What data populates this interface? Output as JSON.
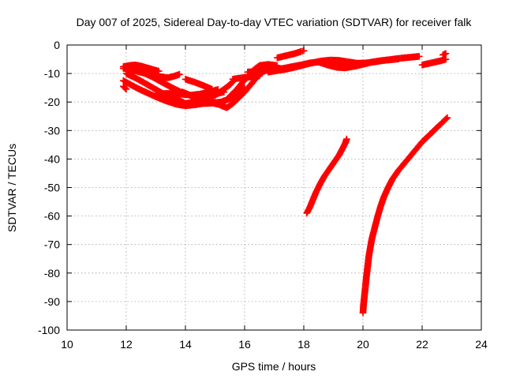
{
  "chart_data": {
    "type": "scatter",
    "title": "Day 007 of 2025, Sidereal Day-to-day VTEC variation (SDTVAR) for receiver falk",
    "xlabel": "GPS time / hours",
    "ylabel": "SDTVAR / TECUs",
    "xlim": [
      10,
      24
    ],
    "ylim": [
      -100,
      0
    ],
    "xticks": [
      10,
      12,
      14,
      16,
      18,
      20,
      22,
      24
    ],
    "yticks": [
      0,
      -10,
      -20,
      -30,
      -40,
      -50,
      -60,
      -70,
      -80,
      -90,
      -100
    ],
    "grid": true,
    "marker": "+",
    "color": "#ff0000",
    "series": [
      {
        "values": [
          [
            11.9,
            -7.6
          ],
          [
            12.1,
            -7.2
          ],
          [
            12.3,
            -7.0
          ],
          [
            12.5,
            -7.4
          ],
          [
            12.7,
            -8.0
          ],
          [
            12.9,
            -8.6
          ],
          [
            13.1,
            -9.2
          ]
        ]
      },
      {
        "values": [
          [
            11.9,
            -8.2
          ],
          [
            12.2,
            -8.8
          ],
          [
            12.5,
            -9.6
          ],
          [
            12.8,
            -10.4
          ],
          [
            13.1,
            -11.0
          ],
          [
            13.4,
            -11.5
          ],
          [
            13.6,
            -11.0
          ],
          [
            13.8,
            -10.3
          ]
        ]
      },
      {
        "values": [
          [
            12.0,
            -10.0
          ],
          [
            12.3,
            -11.5
          ],
          [
            12.6,
            -13.2
          ],
          [
            12.9,
            -15.0
          ],
          [
            13.2,
            -16.8
          ],
          [
            13.5,
            -18.5
          ],
          [
            13.8,
            -19.5
          ],
          [
            14.0,
            -20.5
          ],
          [
            14.3,
            -20.0
          ],
          [
            14.6,
            -19.2
          ],
          [
            14.9,
            -18.2
          ],
          [
            15.1,
            -17.0
          ],
          [
            15.3,
            -15.5
          ],
          [
            15.5,
            -14.0
          ],
          [
            15.6,
            -12.8
          ]
        ]
      },
      {
        "values": [
          [
            11.9,
            -12.5
          ],
          [
            12.2,
            -14.2
          ],
          [
            12.5,
            -15.8
          ],
          [
            12.8,
            -17.2
          ],
          [
            13.1,
            -18.6
          ],
          [
            13.4,
            -19.8
          ],
          [
            13.7,
            -20.8
          ],
          [
            14.0,
            -21.3
          ],
          [
            14.3,
            -21.0
          ],
          [
            14.6,
            -20.5
          ],
          [
            14.9,
            -20.4
          ],
          [
            15.2,
            -20.0
          ],
          [
            15.5,
            -18.8
          ],
          [
            15.8,
            -17.0
          ],
          [
            16.0,
            -15.0
          ]
        ]
      },
      {
        "values": [
          [
            12.3,
            -8.5
          ],
          [
            12.6,
            -9.8
          ],
          [
            12.9,
            -11.3
          ],
          [
            13.2,
            -13.0
          ],
          [
            13.5,
            -14.7
          ],
          [
            13.8,
            -16.3
          ],
          [
            14.1,
            -17.5
          ],
          [
            14.4,
            -18.5
          ],
          [
            14.7,
            -18.0
          ],
          [
            15.0,
            -17.2
          ],
          [
            15.3,
            -16.5
          ]
        ]
      },
      {
        "values": [
          [
            13.0,
            -17.5
          ],
          [
            13.3,
            -17.0
          ],
          [
            13.6,
            -17.0
          ],
          [
            13.9,
            -17.3
          ],
          [
            14.2,
            -17.6
          ],
          [
            14.5,
            -17.2
          ],
          [
            14.8,
            -16.5
          ],
          [
            15.1,
            -15.6
          ]
        ]
      },
      {
        "values": [
          [
            13.9,
            -16.5
          ],
          [
            14.2,
            -17.8
          ],
          [
            14.5,
            -19.0
          ],
          [
            14.8,
            -20.0
          ],
          [
            15.1,
            -20.8
          ],
          [
            15.3,
            -21.0
          ]
        ]
      },
      {
        "values": [
          [
            14.0,
            -12.0
          ],
          [
            14.3,
            -13.0
          ],
          [
            14.6,
            -14.2
          ],
          [
            14.9,
            -15.5
          ]
        ]
      },
      {
        "values": [
          [
            15.0,
            -20.0
          ],
          [
            15.2,
            -21.2
          ],
          [
            15.4,
            -22.0
          ],
          [
            15.6,
            -20.5
          ],
          [
            15.8,
            -18.5
          ],
          [
            16.0,
            -16.5
          ],
          [
            16.2,
            -14.0
          ],
          [
            16.4,
            -11.5
          ],
          [
            16.6,
            -9.5
          ],
          [
            16.8,
            -8.5
          ],
          [
            17.0,
            -8.0
          ]
        ]
      },
      {
        "values": [
          [
            15.6,
            -12.0
          ],
          [
            15.9,
            -11.5
          ],
          [
            16.2,
            -11.2
          ],
          [
            16.5,
            -10.8
          ]
        ]
      },
      {
        "values": [
          [
            15.5,
            -18.0
          ],
          [
            15.7,
            -16.0
          ],
          [
            15.9,
            -13.5
          ],
          [
            16.1,
            -11.0
          ],
          [
            16.3,
            -8.8
          ],
          [
            16.5,
            -7.2
          ],
          [
            16.8,
            -6.8
          ],
          [
            17.1,
            -7.2
          ]
        ]
      },
      {
        "values": [
          [
            16.1,
            -9.5
          ],
          [
            16.4,
            -9.2
          ],
          [
            16.7,
            -9.0
          ],
          [
            17.0,
            -8.6
          ],
          [
            17.3,
            -8.2
          ],
          [
            17.6,
            -7.6
          ],
          [
            17.9,
            -7.0
          ],
          [
            18.2,
            -6.3
          ],
          [
            18.5,
            -6.0
          ],
          [
            18.8,
            -6.0
          ],
          [
            19.1,
            -6.3
          ],
          [
            19.4,
            -6.8
          ],
          [
            19.7,
            -7.0
          ]
        ]
      },
      {
        "values": [
          [
            16.8,
            -9.5
          ],
          [
            17.1,
            -9.0
          ],
          [
            17.4,
            -8.5
          ],
          [
            17.7,
            -7.8
          ],
          [
            18.0,
            -7.0
          ],
          [
            18.3,
            -6.2
          ],
          [
            18.6,
            -5.6
          ],
          [
            18.9,
            -5.3
          ],
          [
            19.2,
            -5.4
          ],
          [
            19.5,
            -5.9
          ],
          [
            19.8,
            -6.4
          ],
          [
            20.1,
            -6.3
          ],
          [
            20.4,
            -5.9
          ],
          [
            20.7,
            -5.4
          ],
          [
            21.0,
            -5.0
          ],
          [
            21.3,
            -4.6
          ],
          [
            21.6,
            -4.3
          ],
          [
            21.9,
            -4.0
          ]
        ]
      },
      {
        "values": [
          [
            18.5,
            -6.0
          ],
          [
            18.8,
            -7.0
          ],
          [
            19.1,
            -7.8
          ],
          [
            19.4,
            -8.0
          ],
          [
            19.7,
            -7.5
          ],
          [
            20.0,
            -6.8
          ],
          [
            20.3,
            -6.0
          ],
          [
            20.6,
            -5.5
          ],
          [
            20.9,
            -5.2
          ],
          [
            21.2,
            -4.9
          ]
        ]
      },
      {
        "values": [
          [
            17.1,
            -4.5
          ],
          [
            17.3,
            -4.0
          ],
          [
            17.5,
            -3.5
          ],
          [
            17.7,
            -3.0
          ],
          [
            17.9,
            -2.3
          ],
          [
            18.0,
            -2.0
          ]
        ]
      },
      {
        "values": [
          [
            22.0,
            -7.0
          ],
          [
            22.3,
            -6.3
          ],
          [
            22.6,
            -5.6
          ],
          [
            22.8,
            -5.0
          ]
        ]
      },
      {
        "values": [
          [
            22.7,
            -3.5
          ],
          [
            22.8,
            -3.0
          ]
        ]
      },
      {
        "values": [
          [
            11.9,
            -14.5
          ],
          [
            12.0,
            -15.5
          ]
        ]
      },
      {
        "values": [
          [
            18.1,
            -59.0
          ],
          [
            18.2,
            -57.0
          ],
          [
            18.3,
            -54.5
          ],
          [
            18.4,
            -52.0
          ],
          [
            18.5,
            -49.8
          ],
          [
            18.6,
            -47.8
          ],
          [
            18.7,
            -46.0
          ],
          [
            18.8,
            -44.5
          ],
          [
            18.9,
            -43.0
          ],
          [
            19.0,
            -41.5
          ],
          [
            19.1,
            -40.0
          ],
          [
            19.2,
            -38.5
          ],
          [
            19.3,
            -36.5
          ],
          [
            19.4,
            -34.5
          ],
          [
            19.45,
            -33.0
          ]
        ]
      },
      {
        "values": [
          [
            20.0,
            -94.0
          ],
          [
            20.02,
            -91.0
          ],
          [
            20.05,
            -88.0
          ],
          [
            20.08,
            -85.0
          ],
          [
            20.12,
            -81.0
          ],
          [
            20.16,
            -77.5
          ],
          [
            20.2,
            -74.0
          ],
          [
            20.25,
            -71.0
          ],
          [
            20.3,
            -68.0
          ],
          [
            20.4,
            -64.0
          ],
          [
            20.5,
            -60.0
          ],
          [
            20.6,
            -56.5
          ],
          [
            20.7,
            -53.5
          ],
          [
            20.85,
            -50.0
          ],
          [
            21.0,
            -47.0
          ],
          [
            21.2,
            -44.0
          ],
          [
            21.4,
            -41.5
          ],
          [
            21.6,
            -39.0
          ],
          [
            21.8,
            -36.5
          ],
          [
            22.0,
            -34.0
          ],
          [
            22.2,
            -32.0
          ],
          [
            22.4,
            -30.0
          ],
          [
            22.6,
            -28.0
          ],
          [
            22.85,
            -25.5
          ]
        ]
      }
    ]
  }
}
